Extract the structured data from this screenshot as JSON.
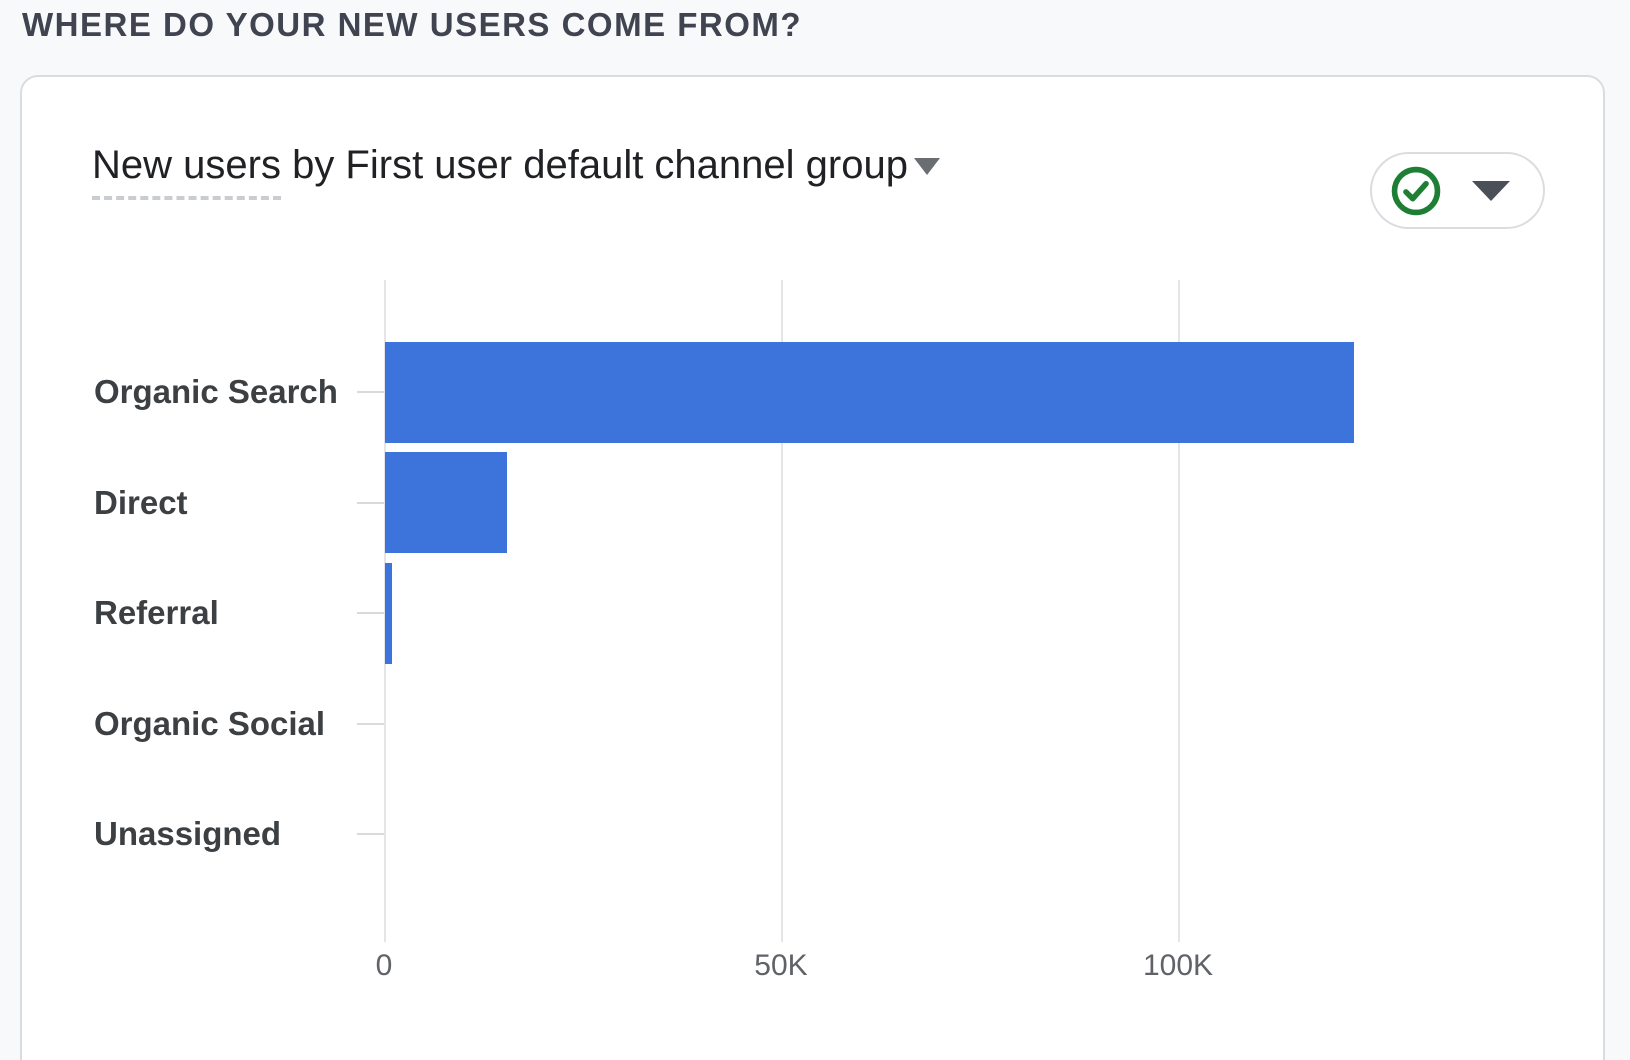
{
  "page": {
    "header": "WHERE DO YOUR NEW USERS COME FROM?"
  },
  "card": {
    "title_metric": "New users",
    "title_rest": " by First user default channel group",
    "icons": {
      "title_caret": "triangle-down-icon",
      "status": "check-circle-icon",
      "status_caret": "chevron-down-icon"
    }
  },
  "colors": {
    "bar": "#3d74dc",
    "status_green": "#1e7e34",
    "grid": "#e3e5e8",
    "axis_label": "#5f6368"
  },
  "chart_data": {
    "type": "bar",
    "orientation": "horizontal",
    "title": "New users by First user default channel group",
    "xlabel": "New users",
    "ylabel": "First user default channel group",
    "categories": [
      "Organic Search",
      "Direct",
      "Referral",
      "Organic Social",
      "Unassigned"
    ],
    "values": [
      122000,
      15400,
      900,
      0,
      0
    ],
    "x_ticks": [
      {
        "label": "0",
        "value": 0
      },
      {
        "label": "50K",
        "value": 50000
      },
      {
        "label": "100K",
        "value": 100000
      }
    ],
    "xlim": [
      0,
      150000
    ],
    "grid": "vertical",
    "legend": "none"
  }
}
